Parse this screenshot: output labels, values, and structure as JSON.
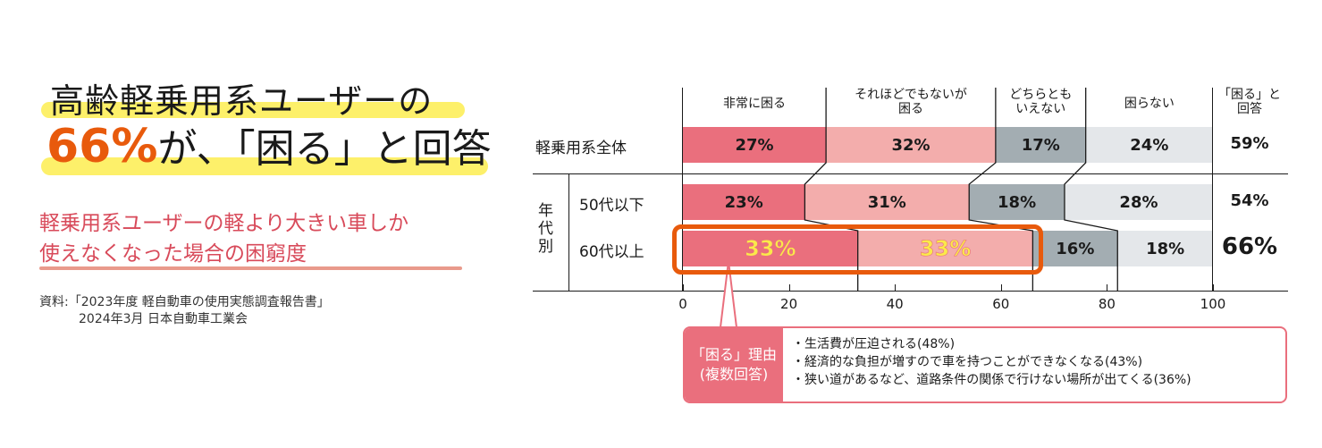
{
  "headline": {
    "line1": "高齢軽乗用系ユーザーの",
    "line2_pct": "66%",
    "line2_rest": "が、「困る」と回答"
  },
  "subtitle": {
    "line1": "軽乗用系ユーザーの軽より大きい車しか",
    "line2": "使えなくなった場合の困窮度"
  },
  "source": {
    "line1": "資料:「2023年度 軽自動車の使用実態調査報告書」",
    "line2": "2024年3月 日本自動車工業会"
  },
  "colors": {
    "very_troubled": "#ea6f7d",
    "somewhat_troubled": "#f3adac",
    "neutral": "#a3adb2",
    "not_troubled": "#e4e7ea",
    "highlight_box": "#e85a0c",
    "highlight_text": "#fbe94a",
    "headline_bar": "#fdf06a",
    "subtitle": "#d84a5a"
  },
  "chart_data": {
    "type": "bar",
    "orientation": "horizontal-stacked-100",
    "title": "軽乗用系ユーザーの軽より大きい車しか使えなくなった場合の困窮度",
    "categories": [
      "軽乗用系全体",
      "50代以下",
      "60代以上"
    ],
    "group_label": "年代別",
    "series": [
      {
        "name": "非常に困る",
        "values": [
          27,
          23,
          33
        ]
      },
      {
        "name": "それほどでもないが困る",
        "values": [
          32,
          31,
          33
        ]
      },
      {
        "name": "どちらともいえない",
        "values": [
          17,
          18,
          16
        ]
      },
      {
        "name": "困らない",
        "values": [
          24,
          28,
          18
        ]
      }
    ],
    "totals_label": "「困る」と回答",
    "totals": [
      59,
      54,
      66
    ],
    "xlim": [
      0,
      100
    ],
    "xticks": [
      0,
      20,
      40,
      60,
      80,
      100
    ],
    "highlight": {
      "category": "60代以上",
      "series": [
        "非常に困る",
        "それほどでもないが困る"
      ]
    },
    "annotation": {
      "label": "「困る」理由（複数回答）",
      "items": [
        {
          "text": "生活費が圧迫される",
          "value": 48
        },
        {
          "text": "経済的な負担が増すので車を持つことができなくなる",
          "value": 43
        },
        {
          "text": "狭い道があるなど、道路条件の関係で行けない場所が出てくる",
          "value": 36
        }
      ]
    }
  },
  "chart": {
    "headers": [
      "非常に困る",
      "それほどでもないが\n困る",
      "どちらとも\nいえない",
      "困らない",
      "「困る」と\n回答"
    ],
    "header_lines": [
      [
        "非常に困る"
      ],
      [
        "それほどでもないが",
        "困る"
      ],
      [
        "どちらとも",
        "いえない"
      ],
      [
        "困らない"
      ],
      [
        "「困る」と",
        "回答"
      ]
    ],
    "group_label": "年代別",
    "rows": [
      {
        "label": "軽乗用系全体",
        "segs": [
          "27%",
          "32%",
          "17%",
          "24%"
        ],
        "total": "59%"
      },
      {
        "label": "50代以下",
        "segs": [
          "23%",
          "31%",
          "18%",
          "28%"
        ],
        "total": "54%"
      },
      {
        "label": "60代以上",
        "segs": [
          "33%",
          "33%",
          "16%",
          "18%"
        ],
        "total": "66%"
      }
    ],
    "ticks": [
      "0",
      "20",
      "40",
      "60",
      "80",
      "100"
    ],
    "callout": {
      "label1": "「困る」理由",
      "label2": "(複数回答)",
      "items": [
        "・生活費が圧迫される(48%)",
        "・経済的な負担が増すので車を持つことができなくなる(43%)",
        "・狭い道があるなど、道路条件の関係で行けない場所が出てくる(36%)"
      ]
    }
  }
}
